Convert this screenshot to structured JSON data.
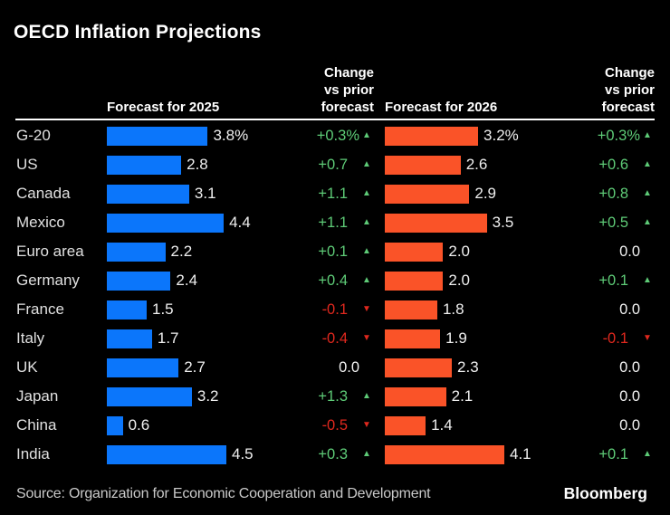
{
  "title": "OECD Inflation Projections",
  "header": {
    "col_2025": "Forecast for 2025",
    "col_change_1": "Change\nvs prior\nforecast",
    "col_2026": "Forecast for 2026",
    "col_change_2": "Change\nvs prior\nforecast"
  },
  "icons": {
    "up_arrow": "▲",
    "down_arrow": "▼"
  },
  "colors": {
    "background": "#000000",
    "bar_2025_blue": "#0B76FB",
    "bar_2026_orange": "#FA5328",
    "positive_green": "#5ECB77",
    "negative_red": "#E0281E",
    "neutral_text": "#F2F2F2"
  },
  "rows": [
    {
      "country": "G-20",
      "v2025": 3.8,
      "v2025_label": "3.8%",
      "chg2025": "+0.3%",
      "dir2025": "up",
      "v2026": 3.2,
      "v2026_label": "3.2%",
      "chg2026": "+0.3%",
      "dir2026": "up"
    },
    {
      "country": "US",
      "v2025": 2.8,
      "v2025_label": "2.8",
      "chg2025": "+0.7",
      "dir2025": "up",
      "v2026": 2.6,
      "v2026_label": "2.6",
      "chg2026": "+0.6",
      "dir2026": "up"
    },
    {
      "country": "Canada",
      "v2025": 3.1,
      "v2025_label": "3.1",
      "chg2025": "+1.1",
      "dir2025": "up",
      "v2026": 2.9,
      "v2026_label": "2.9",
      "chg2026": "+0.8",
      "dir2026": "up"
    },
    {
      "country": "Mexico",
      "v2025": 4.4,
      "v2025_label": "4.4",
      "chg2025": "+1.1",
      "dir2025": "up",
      "v2026": 3.5,
      "v2026_label": "3.5",
      "chg2026": "+0.5",
      "dir2026": "up"
    },
    {
      "country": "Euro area",
      "v2025": 2.2,
      "v2025_label": "2.2",
      "chg2025": "+0.1",
      "dir2025": "up",
      "v2026": 2.0,
      "v2026_label": "2.0",
      "chg2026": "0.0",
      "dir2026": "none"
    },
    {
      "country": "Germany",
      "v2025": 2.4,
      "v2025_label": "2.4",
      "chg2025": "+0.4",
      "dir2025": "up",
      "v2026": 2.0,
      "v2026_label": "2.0",
      "chg2026": "+0.1",
      "dir2026": "up"
    },
    {
      "country": "France",
      "v2025": 1.5,
      "v2025_label": "1.5",
      "chg2025": "-0.1",
      "dir2025": "down",
      "v2026": 1.8,
      "v2026_label": "1.8",
      "chg2026": "0.0",
      "dir2026": "none"
    },
    {
      "country": "Italy",
      "v2025": 1.7,
      "v2025_label": "1.7",
      "chg2025": "-0.4",
      "dir2025": "down",
      "v2026": 1.9,
      "v2026_label": "1.9",
      "chg2026": "-0.1",
      "dir2026": "down"
    },
    {
      "country": "UK",
      "v2025": 2.7,
      "v2025_label": "2.7",
      "chg2025": "0.0",
      "dir2025": "none",
      "v2026": 2.3,
      "v2026_label": "2.3",
      "chg2026": "0.0",
      "dir2026": "none"
    },
    {
      "country": "Japan",
      "v2025": 3.2,
      "v2025_label": "3.2",
      "chg2025": "+1.3",
      "dir2025": "up",
      "v2026": 2.1,
      "v2026_label": "2.1",
      "chg2026": "0.0",
      "dir2026": "none"
    },
    {
      "country": "China",
      "v2025": 0.6,
      "v2025_label": "0.6",
      "chg2025": "-0.5",
      "dir2025": "down",
      "v2026": 1.4,
      "v2026_label": "1.4",
      "chg2026": "0.0",
      "dir2026": "none"
    },
    {
      "country": "India",
      "v2025": 4.5,
      "v2025_label": "4.5",
      "chg2025": "+0.3",
      "dir2025": "up",
      "v2026": 4.1,
      "v2026_label": "4.1",
      "chg2026": "+0.1",
      "dir2026": "up"
    }
  ],
  "footer": {
    "source": "Source: Organization for Economic Cooperation and Development",
    "logo": "Bloomberg"
  },
  "chart_data": {
    "type": "bar",
    "orientation": "horizontal",
    "title": "OECD Inflation Projections",
    "categories": [
      "G-20",
      "US",
      "Canada",
      "Mexico",
      "Euro area",
      "Germany",
      "France",
      "Italy",
      "UK",
      "Japan",
      "China",
      "India"
    ],
    "series": [
      {
        "name": "Forecast for 2025",
        "values": [
          3.8,
          2.8,
          3.1,
          4.4,
          2.2,
          2.4,
          1.5,
          1.7,
          2.7,
          3.2,
          0.6,
          4.5
        ],
        "color": "#0B76FB"
      },
      {
        "name": "Change vs prior forecast (2025)",
        "values": [
          0.3,
          0.7,
          1.1,
          1.1,
          0.1,
          0.4,
          -0.1,
          -0.4,
          0.0,
          1.3,
          -0.5,
          0.3
        ]
      },
      {
        "name": "Forecast for 2026",
        "values": [
          3.2,
          2.6,
          2.9,
          3.5,
          2.0,
          2.0,
          1.8,
          1.9,
          2.3,
          2.1,
          1.4,
          4.1
        ],
        "color": "#FA5328"
      },
      {
        "name": "Change vs prior forecast (2026)",
        "values": [
          0.3,
          0.6,
          0.8,
          0.5,
          0.0,
          0.1,
          0.0,
          -0.1,
          0.0,
          0.0,
          0.0,
          0.1
        ]
      }
    ],
    "unit": "%",
    "xlim_2025": [
      0,
      4.5
    ],
    "xlim_2026": [
      0,
      4.1
    ],
    "grid": false,
    "legend_position": "none",
    "value_labels": true,
    "source": "Source: Organization for Economic Cooperation and Development"
  }
}
